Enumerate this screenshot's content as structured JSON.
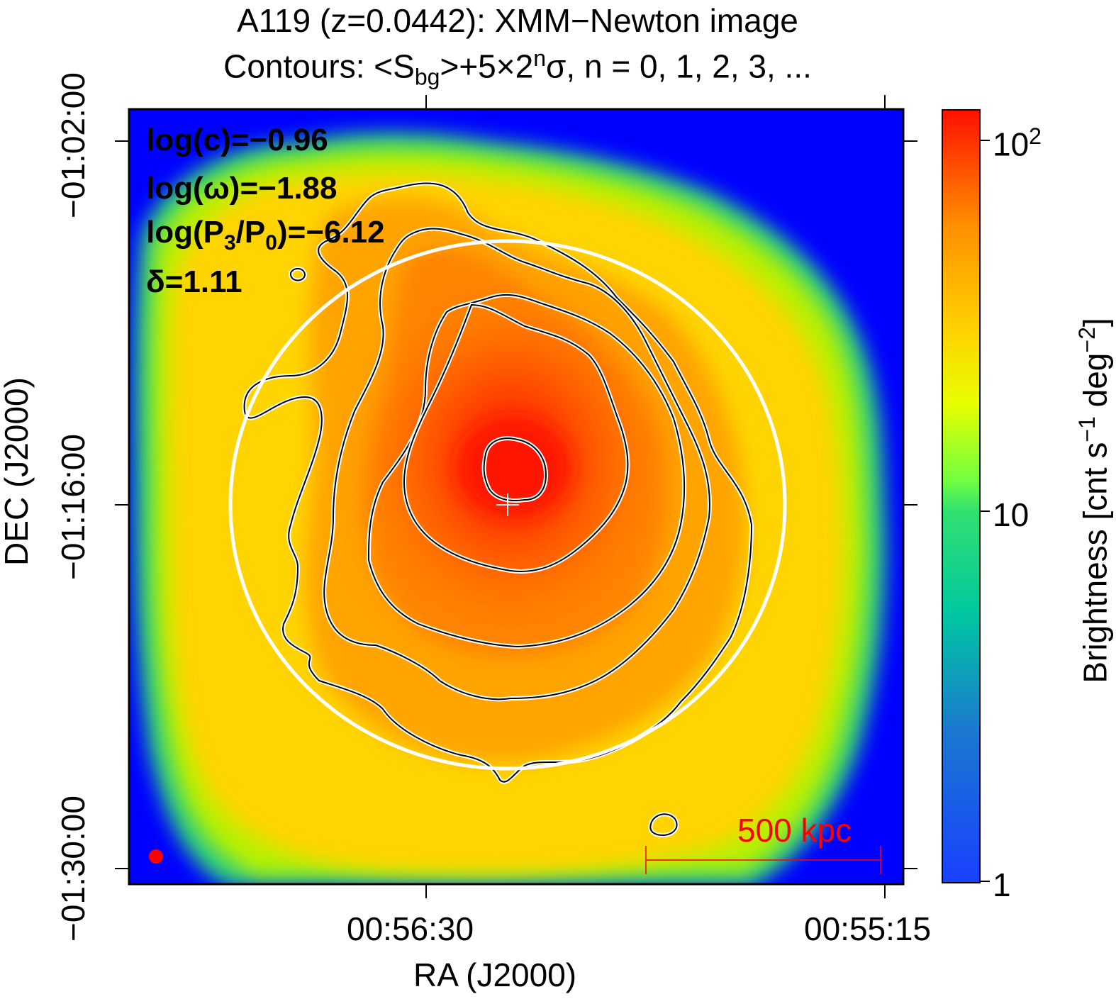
{
  "title": {
    "line1": "A119 (z=0.0442): XMM−Newton image",
    "line2_prefix": "Contours: <S",
    "line2_sub": "bg",
    "line2_mid": ">+5×2",
    "line2_sup": "n",
    "line2_suffix": "σ, n = 0, 1, 2, 3, ..."
  },
  "stats": {
    "c": "log(c)=−0.96",
    "omega": "log(ω)=−1.88",
    "p3p0_prefix": "log(P",
    "p3p0_sub1": "3",
    "p3p0_mid": "/P",
    "p3p0_sub2": "0",
    "p3p0_suffix": ")=−6.12",
    "delta": "δ=1.11"
  },
  "axes": {
    "xlabel": "RA (J2000)",
    "ylabel": "DEC (J2000)",
    "x_ticks": [
      "00:56:30",
      "00:55:15"
    ],
    "y_ticks": [
      "−01:02:00",
      "−01:16:00",
      "−01:30:00"
    ]
  },
  "scalebar": {
    "label": "500 kpc",
    "color": "#ff0000"
  },
  "colorbar": {
    "label": "Brightness [cnt s⁻¹ deg⁻²]",
    "label_main": "Brightness [cnt s",
    "label_sup1": "−1",
    "label_mid": " deg",
    "label_sup2": "−2",
    "label_end": "]",
    "ticks": [
      "10",
      "10",
      "1"
    ],
    "tick_sup": "2",
    "scale": "log",
    "range": [
      1,
      100
    ],
    "colors": [
      "#0000ff",
      "#00e0a0",
      "#80ff00",
      "#ffe000",
      "#ff9000",
      "#ff0000"
    ]
  },
  "colors": {
    "background_sky": "#0000ff",
    "core": "#ff1a00",
    "contour_outer": "#ffffff",
    "contour_inner": "#000000",
    "circle": "#ffffff",
    "beam": "#ff0000"
  }
}
